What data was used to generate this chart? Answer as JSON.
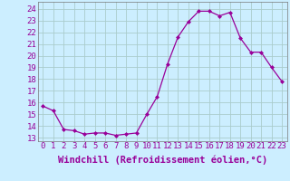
{
  "x": [
    0,
    1,
    2,
    3,
    4,
    5,
    6,
    7,
    8,
    9,
    10,
    11,
    12,
    13,
    14,
    15,
    16,
    17,
    18,
    19,
    20,
    21,
    22,
    23
  ],
  "y": [
    15.7,
    15.3,
    13.7,
    13.6,
    13.3,
    13.4,
    13.4,
    13.2,
    13.3,
    13.4,
    15.0,
    16.5,
    19.3,
    21.6,
    22.9,
    23.8,
    23.8,
    23.4,
    23.7,
    21.5,
    20.3,
    20.3,
    19.0,
    17.8
  ],
  "line_color": "#990099",
  "marker": "D",
  "marker_size": 2,
  "bg_color": "#cceeff",
  "grid_color": "#aacccc",
  "xlabel": "Windchill (Refroidissement éolien,°C)",
  "xlabel_color": "#990099",
  "xlabel_fontsize": 7.5,
  "tick_color": "#990099",
  "tick_fontsize": 6.5,
  "yticks": [
    13,
    14,
    15,
    16,
    17,
    18,
    19,
    20,
    21,
    22,
    23,
    24
  ],
  "ylim": [
    12.7,
    24.6
  ],
  "xlim": [
    -0.5,
    23.5
  ],
  "xtick_labels": [
    "0",
    "1",
    "2",
    "3",
    "4",
    "5",
    "6",
    "7",
    "8",
    "9",
    "10",
    "11",
    "12",
    "13",
    "14",
    "15",
    "16",
    "17",
    "18",
    "19",
    "20",
    "21",
    "22",
    "23"
  ]
}
